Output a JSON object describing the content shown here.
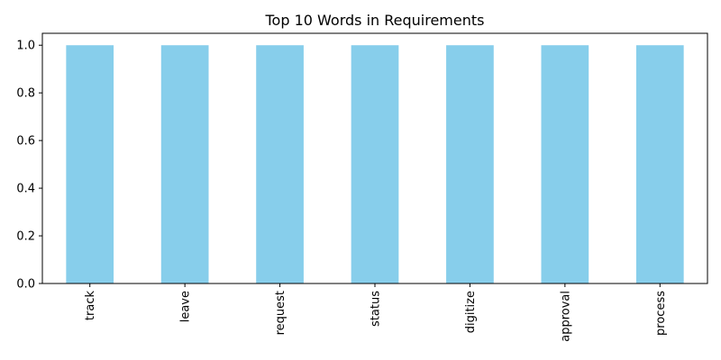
{
  "chart_data": {
    "type": "bar",
    "title": "Top 10 Words in Requirements",
    "xlabel": "",
    "ylabel": "",
    "categories": [
      "track",
      "leave",
      "request",
      "status",
      "digitize",
      "approval",
      "process"
    ],
    "values": [
      1.0,
      1.0,
      1.0,
      1.0,
      1.0,
      1.0,
      1.0
    ],
    "ylim": [
      0,
      1.05
    ],
    "yticks": [
      "0.0",
      "0.2",
      "0.4",
      "0.6",
      "0.8",
      "1.0"
    ],
    "bar_color": "#87ceeb",
    "grid": false,
    "legend": "none"
  }
}
